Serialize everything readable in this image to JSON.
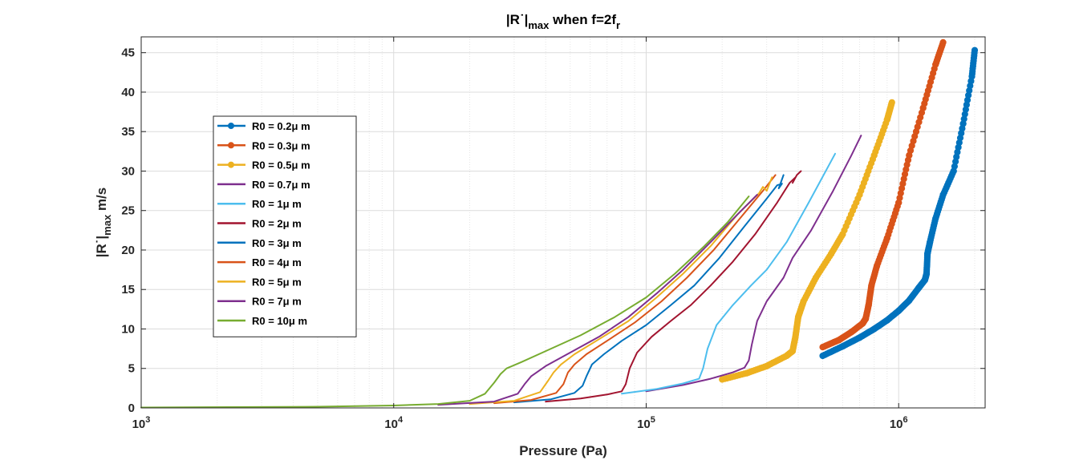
{
  "chart_data": {
    "type": "line",
    "title": "|R˙|max when f=2fr",
    "xlabel": "Pressure (Pa)",
    "ylabel": "|R˙|max m/s",
    "xscale": "log",
    "xlim": [
      1000,
      2200000
    ],
    "ylim": [
      0,
      47
    ],
    "yticks": [
      0,
      5,
      10,
      15,
      20,
      25,
      30,
      35,
      40,
      45
    ],
    "xticks": [
      1000,
      10000,
      100000,
      1000000
    ],
    "xtick_labels": [
      {
        "base": "10",
        "exp": "3"
      },
      {
        "base": "10",
        "exp": "4"
      },
      {
        "base": "10",
        "exp": "5"
      },
      {
        "base": "10",
        "exp": "6"
      }
    ],
    "grid": true,
    "legend": "upper-left",
    "series": [
      {
        "name": "R0 = 0.2μ m",
        "color": "#0072BD",
        "marker": "circle",
        "x": [
          500000,
          600000,
          700000,
          800000,
          900000,
          1000000,
          1100000,
          1200000,
          1270000,
          1290000,
          1300000,
          1330000,
          1400000,
          1500000,
          1650000,
          1800000,
          1950000,
          2000000
        ],
        "y": [
          6.6,
          7.8,
          8.9,
          10.0,
          11.1,
          12.3,
          13.6,
          15.2,
          16.2,
          17.0,
          19.5,
          21.0,
          24.0,
          27.0,
          30.0,
          36.0,
          42.0,
          45.3
        ]
      },
      {
        "name": "R0 = 0.3μ m",
        "color": "#D95319",
        "marker": "circle",
        "x": [
          500000,
          580000,
          650000,
          720000,
          740000,
          760000,
          780000,
          820000,
          900000,
          1000000,
          1100000,
          1250000,
          1400000,
          1500000
        ],
        "y": [
          7.7,
          8.6,
          9.6,
          10.7,
          11.3,
          13.0,
          15.5,
          18.0,
          21.5,
          26.0,
          32.0,
          38.0,
          43.5,
          46.3
        ]
      },
      {
        "name": "R0 = 0.5μ m",
        "color": "#EDB120",
        "marker": "circle",
        "x": [
          200000,
          250000,
          300000,
          360000,
          380000,
          390000,
          400000,
          420000,
          470000,
          540000,
          600000,
          700000,
          800000,
          900000,
          940000
        ],
        "y": [
          3.6,
          4.4,
          5.3,
          6.6,
          7.2,
          9.0,
          11.5,
          13.5,
          16.5,
          19.5,
          22.0,
          27.0,
          32.0,
          36.5,
          38.7
        ]
      },
      {
        "name": "R0 = 0.7μ m",
        "color": "#7E2F8E",
        "marker": "none",
        "x": [
          100000,
          140000,
          180000,
          220000,
          245000,
          255000,
          262000,
          275000,
          300000,
          350000,
          380000,
          450000,
          550000,
          650000,
          710000
        ],
        "y": [
          2.1,
          2.9,
          3.7,
          4.5,
          5.1,
          6.0,
          8.0,
          11.0,
          13.5,
          16.5,
          19.0,
          22.5,
          27.5,
          32.0,
          34.5
        ]
      },
      {
        "name": "R0 = 1μ m",
        "color": "#4DBEEE",
        "marker": "none",
        "x": [
          80000,
          110000,
          140000,
          162000,
          168000,
          175000,
          190000,
          220000,
          260000,
          300000,
          360000,
          440000,
          560000
        ],
        "y": [
          1.8,
          2.4,
          3.1,
          3.7,
          5.0,
          7.5,
          10.5,
          13.0,
          15.5,
          17.5,
          21.0,
          26.0,
          32.2
        ]
      },
      {
        "name": "R0 = 2μ m",
        "color": "#A2142F",
        "marker": "none",
        "x": [
          40000,
          55000,
          70000,
          80000,
          83000,
          86000,
          92000,
          105000,
          125000,
          150000,
          180000,
          220000,
          270000,
          330000,
          370000,
          390000,
          380000,
          395000,
          410000
        ],
        "y": [
          0.8,
          1.2,
          1.7,
          2.1,
          3.0,
          5.0,
          7.0,
          9.0,
          11.0,
          13.0,
          15.5,
          18.5,
          22.0,
          26.0,
          28.5,
          29.2,
          28.5,
          29.5,
          30.0
        ]
      },
      {
        "name": "R0 = 3μ m",
        "color": "#0072BD",
        "marker": "none",
        "x": [
          30000,
          42000,
          52000,
          56000,
          58000,
          61000,
          68000,
          80000,
          100000,
          125000,
          155000,
          195000,
          245000,
          300000,
          330000,
          345000,
          335000,
          350000
        ],
        "y": [
          0.7,
          1.1,
          1.9,
          2.8,
          4.0,
          5.5,
          6.8,
          8.5,
          10.5,
          13.0,
          15.5,
          19.0,
          23.0,
          26.5,
          28.2,
          28.4,
          27.8,
          29.5
        ]
      },
      {
        "name": "R0 = 4μ m",
        "color": "#D95319",
        "marker": "none",
        "x": [
          25000,
          35000,
          44000,
          47000,
          49000,
          52000,
          58000,
          70000,
          90000,
          115000,
          145000,
          185000,
          235000,
          290000,
          325000
        ],
        "y": [
          0.6,
          1.0,
          1.9,
          3.0,
          4.5,
          5.5,
          6.8,
          8.5,
          10.8,
          13.5,
          16.5,
          20.0,
          24.0,
          27.5,
          29.5
        ]
      },
      {
        "name": "R0 = 5μ m",
        "color": "#EDB120",
        "marker": "none",
        "x": [
          20000,
          30000,
          38000,
          41000,
          43000,
          46000,
          52000,
          65000,
          85000,
          110000,
          140000,
          180000,
          230000,
          280000,
          290000,
          300000,
          315000
        ],
        "y": [
          0.5,
          0.9,
          2.0,
          3.5,
          4.5,
          5.5,
          6.8,
          8.7,
          11.0,
          14.0,
          17.0,
          20.5,
          24.5,
          27.2,
          28.0,
          27.5,
          29.2
        ]
      },
      {
        "name": "R0 = 7μ m",
        "color": "#7E2F8E",
        "marker": "none",
        "x": [
          15000,
          25000,
          31000,
          33000,
          35000,
          40000,
          50000,
          65000,
          85000,
          110000,
          140000,
          180000,
          230000,
          275000
        ],
        "y": [
          0.4,
          0.8,
          1.8,
          3.0,
          4.0,
          5.3,
          7.0,
          9.0,
          11.5,
          14.5,
          17.5,
          21.0,
          24.5,
          27.0
        ]
      },
      {
        "name": "R0 = 10μ m",
        "color": "#77AC30",
        "marker": "none",
        "x": [
          1000,
          5000,
          10000,
          15000,
          20000,
          23000,
          25000,
          26500,
          28000,
          32000,
          40000,
          55000,
          75000,
          100000,
          130000,
          170000,
          210000,
          255000
        ],
        "y": [
          0.05,
          0.15,
          0.3,
          0.5,
          0.9,
          1.8,
          3.2,
          4.3,
          5.0,
          5.8,
          7.2,
          9.2,
          11.5,
          14.0,
          17.0,
          20.5,
          23.5,
          26.8
        ]
      }
    ]
  }
}
